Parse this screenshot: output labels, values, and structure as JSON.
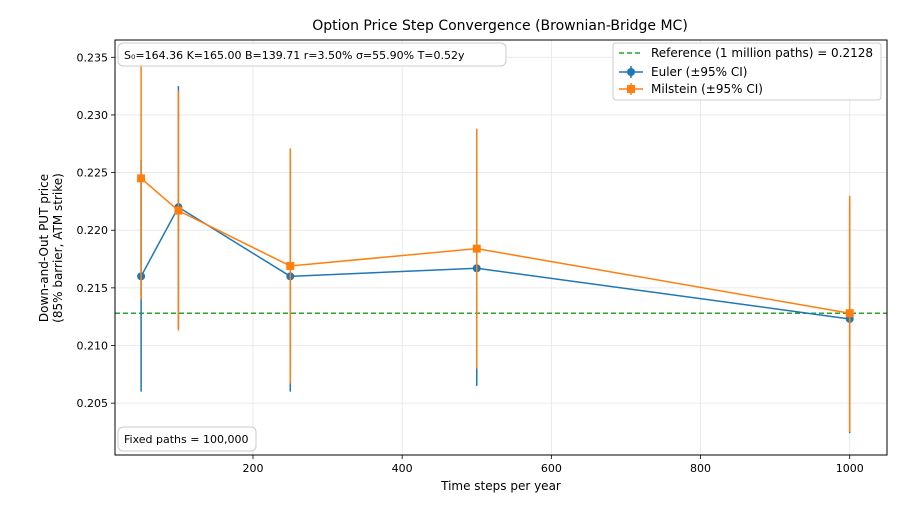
{
  "chart_data": {
    "type": "line",
    "title": "Option Price Step Convergence (Brownian-Bridge MC)",
    "xlabel": "Time steps per year",
    "ylabel_lines": [
      "Down-and-Out PUT price",
      "(85% barrier, ATM strike)"
    ],
    "xlim": [
      15,
      1050
    ],
    "ylim": [
      0.2005,
      0.2365
    ],
    "xticks": [
      200,
      400,
      600,
      800,
      1000
    ],
    "yticks": [
      0.205,
      0.21,
      0.215,
      0.22,
      0.225,
      0.23,
      0.235
    ],
    "ytick_labels": [
      "0.205",
      "0.210",
      "0.215",
      "0.220",
      "0.225",
      "0.230",
      "0.235"
    ],
    "grid": true,
    "legend_position": "top-right",
    "x": [
      50,
      100,
      250,
      500,
      1000
    ],
    "reference": {
      "name": "Reference (1 million paths) = 0.2128",
      "value": 0.2128,
      "color": "#2ca02c"
    },
    "series": [
      {
        "name": "Euler (±95% CI)",
        "color": "#1f77b4",
        "marker": "circle",
        "values": [
          0.216,
          0.222,
          0.216,
          0.2167,
          0.2123
        ],
        "ci_low": [
          0.206,
          0.2115,
          0.206,
          0.2065,
          0.2024
        ],
        "ci_high": [
          0.2261,
          0.2325,
          0.226,
          0.2268,
          0.2222
        ]
      },
      {
        "name": "Milstein (±95% CI)",
        "color": "#ff7f0e",
        "marker": "square",
        "values": [
          0.2245,
          0.2217,
          0.2169,
          0.2184,
          0.2128
        ],
        "ci_low": [
          0.214,
          0.2113,
          0.2067,
          0.208,
          0.2025
        ],
        "ci_high": [
          0.235,
          0.2321,
          0.2271,
          0.2288,
          0.223
        ]
      }
    ],
    "params_text": "S₀=164.36   K=165.00   B=139.71   r=3.50%   σ=55.90%   T=0.52y",
    "annotation": "Fixed paths = 100,000"
  }
}
